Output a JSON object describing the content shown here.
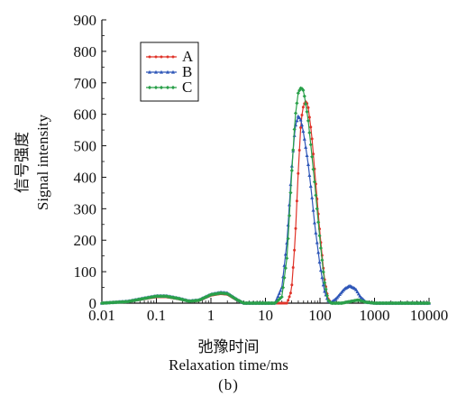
{
  "chart_data": {
    "type": "line",
    "x_scale": "log",
    "xlim": [
      0.01,
      10000
    ],
    "ylim": [
      0,
      900
    ],
    "x_ticks": [
      "0.01",
      "0.1",
      "1",
      "10",
      "100",
      "1000",
      "10000"
    ],
    "y_ticks": [
      "0",
      "100",
      "200",
      "300",
      "400",
      "500",
      "600",
      "700",
      "800",
      "900"
    ],
    "xlabel": "Relaxation time/ms",
    "xlabel_cn": "弛豫时间",
    "ylabel": "Signal intensity",
    "ylabel_cn": "信号强度",
    "caption": "(b)",
    "legend_position": "top-left",
    "series": [
      {
        "name": "A",
        "color": "#e0342a",
        "marker": "circle",
        "points": [
          [
            0.01,
            0
          ],
          [
            0.03,
            5
          ],
          [
            0.06,
            14
          ],
          [
            0.1,
            20
          ],
          [
            0.15,
            20
          ],
          [
            0.25,
            14
          ],
          [
            0.4,
            6
          ],
          [
            0.6,
            8
          ],
          [
            1,
            25
          ],
          [
            1.5,
            30
          ],
          [
            2,
            28
          ],
          [
            3,
            10
          ],
          [
            4,
            0
          ],
          [
            25,
            0
          ],
          [
            30,
            40
          ],
          [
            35,
            200
          ],
          [
            40,
            420
          ],
          [
            45,
            580
          ],
          [
            50,
            630
          ],
          [
            55,
            640
          ],
          [
            60,
            630
          ],
          [
            70,
            540
          ],
          [
            80,
            420
          ],
          [
            100,
            220
          ],
          [
            120,
            80
          ],
          [
            140,
            15
          ],
          [
            160,
            0
          ],
          [
            250,
            0
          ],
          [
            350,
            5
          ],
          [
            500,
            10
          ],
          [
            700,
            3
          ],
          [
            1000,
            0
          ],
          [
            10000,
            0
          ]
        ]
      },
      {
        "name": "B",
        "color": "#2e56b8",
        "marker": "triangle",
        "points": [
          [
            0.01,
            0
          ],
          [
            0.03,
            6
          ],
          [
            0.06,
            16
          ],
          [
            0.1,
            23
          ],
          [
            0.15,
            23
          ],
          [
            0.25,
            16
          ],
          [
            0.4,
            7
          ],
          [
            0.6,
            10
          ],
          [
            1,
            28
          ],
          [
            1.5,
            34
          ],
          [
            2,
            32
          ],
          [
            3,
            12
          ],
          [
            4,
            0
          ],
          [
            15,
            0
          ],
          [
            20,
            50
          ],
          [
            25,
            200
          ],
          [
            30,
            420
          ],
          [
            35,
            560
          ],
          [
            40,
            595
          ],
          [
            45,
            580
          ],
          [
            50,
            540
          ],
          [
            60,
            450
          ],
          [
            70,
            350
          ],
          [
            80,
            250
          ],
          [
            100,
            120
          ],
          [
            120,
            40
          ],
          [
            140,
            8
          ],
          [
            160,
            2
          ],
          [
            200,
            15
          ],
          [
            280,
            45
          ],
          [
            350,
            55
          ],
          [
            450,
            45
          ],
          [
            550,
            20
          ],
          [
            700,
            3
          ],
          [
            1000,
            0
          ],
          [
            10000,
            0
          ]
        ]
      },
      {
        "name": "C",
        "color": "#2aa04a",
        "marker": "diamond",
        "points": [
          [
            0.01,
            0
          ],
          [
            0.03,
            5
          ],
          [
            0.06,
            15
          ],
          [
            0.1,
            22
          ],
          [
            0.15,
            22
          ],
          [
            0.25,
            15
          ],
          [
            0.4,
            6
          ],
          [
            0.6,
            9
          ],
          [
            1,
            27
          ],
          [
            1.5,
            32
          ],
          [
            2,
            30
          ],
          [
            3,
            11
          ],
          [
            4,
            0
          ],
          [
            15,
            0
          ],
          [
            20,
            20
          ],
          [
            25,
            150
          ],
          [
            30,
            400
          ],
          [
            35,
            590
          ],
          [
            40,
            670
          ],
          [
            45,
            685
          ],
          [
            50,
            675
          ],
          [
            60,
            590
          ],
          [
            70,
            480
          ],
          [
            80,
            380
          ],
          [
            100,
            200
          ],
          [
            120,
            70
          ],
          [
            140,
            10
          ],
          [
            160,
            0
          ],
          [
            250,
            0
          ],
          [
            350,
            5
          ],
          [
            500,
            10
          ],
          [
            700,
            3
          ],
          [
            1000,
            0
          ],
          [
            10000,
            0
          ]
        ]
      }
    ]
  }
}
